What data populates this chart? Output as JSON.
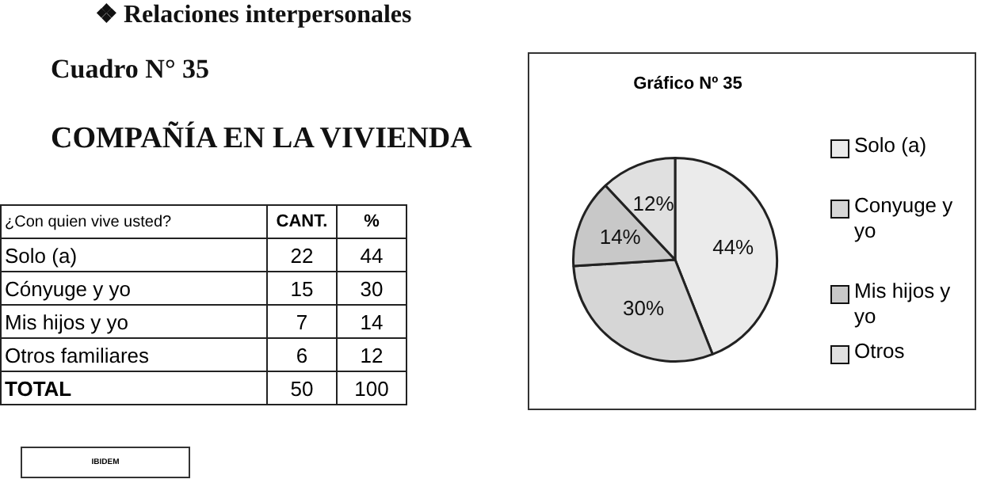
{
  "chart_data": {
    "type": "pie",
    "title": "Gráfico Nº 35",
    "categories": [
      "Solo (a)",
      "Conyuge y yo",
      "Mis hijos y yo",
      "Otros"
    ],
    "values": [
      44,
      30,
      14,
      12
    ],
    "colors": [
      "#ebebeb",
      "#d6d6d6",
      "#c8c8c8",
      "#e0e0e0"
    ],
    "value_labels": [
      "44%",
      "30%",
      "14%",
      "12%"
    ],
    "legend": "right",
    "annotations": [
      "❖  Relaciones interpersonales",
      "Cuadro N° 35",
      "COMPAÑÍA EN LA VIVIENDA",
      "¿Con quien vive usted?",
      "CANT.",
      "%",
      "Solo (a)",
      "22",
      "44",
      "Cónyuge y yo",
      "15",
      "30",
      "Mis hijos y yo",
      "7",
      "14",
      "Otros familiares",
      "6",
      "12",
      "TOTAL",
      "50",
      "100",
      "IBIDEM"
    ]
  }
}
